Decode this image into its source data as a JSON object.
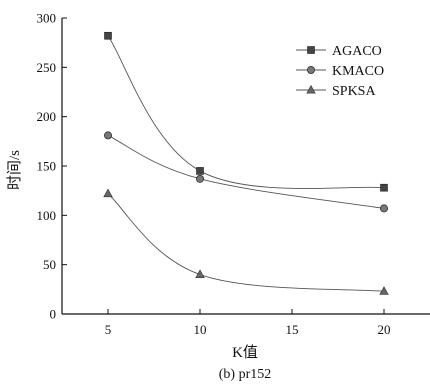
{
  "chart_data": {
    "type": "line",
    "title": "(b) pr152",
    "xlabel": "K值",
    "ylabel": "时间/s",
    "x": [
      5,
      10,
      20
    ],
    "xlim": [
      2.5,
      22.5
    ],
    "ylim": [
      0,
      300
    ],
    "xticks": [
      5,
      10,
      15,
      20
    ],
    "yticks": [
      0,
      50,
      100,
      150,
      200,
      250,
      300
    ],
    "grid": false,
    "legend_position": "top-right",
    "series": [
      {
        "name": "AGACO",
        "marker": "square",
        "values": [
          282,
          145,
          128
        ]
      },
      {
        "name": "KMACO",
        "marker": "circle",
        "values": [
          181,
          137,
          107
        ]
      },
      {
        "name": "SPKSA",
        "marker": "triangle",
        "values": [
          122,
          40,
          23
        ]
      }
    ],
    "colors": {
      "line": "#555555",
      "marker": "#444444",
      "axis": "#111111"
    }
  }
}
